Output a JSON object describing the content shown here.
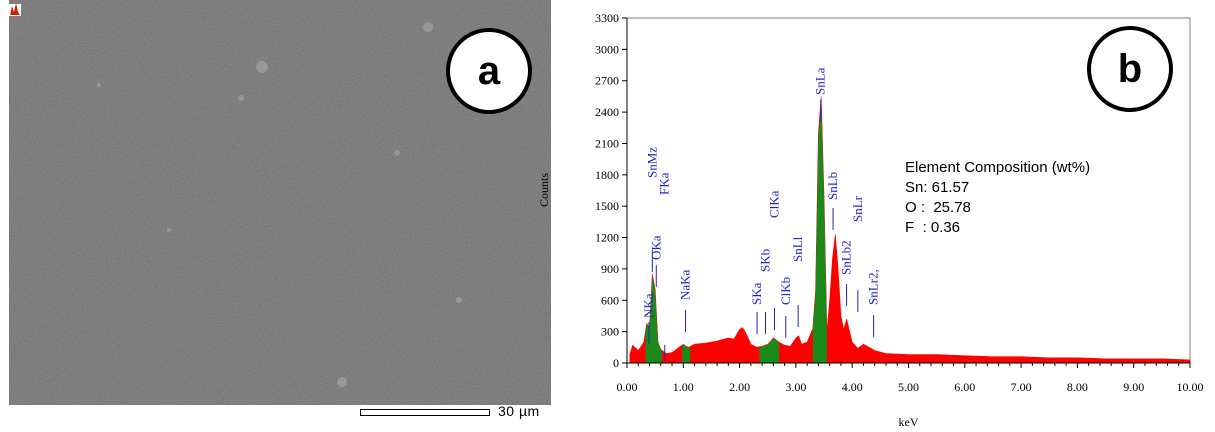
{
  "panel_a": {
    "label": "a",
    "scale_bar_text": "30 µm"
  },
  "panel_b": {
    "label": "b",
    "composition": {
      "title": "Element Composition (wt%)",
      "lines": [
        "Sn: 61.57",
        "O :  25.78",
        "F  : 0.36"
      ]
    }
  },
  "chart_data": {
    "type": "area",
    "title": "",
    "xlabel": "keV",
    "ylabel": "Counts",
    "xlim": [
      0,
      10
    ],
    "ylim": [
      0,
      3300
    ],
    "x_ticks": [
      "0.00",
      "1.00",
      "2.00",
      "3.00",
      "4.00",
      "5.00",
      "6.00",
      "7.00",
      "8.00",
      "9.00",
      "10.00"
    ],
    "y_ticks": [
      "0",
      "300",
      "600",
      "900",
      "1200",
      "1500",
      "1800",
      "2100",
      "2400",
      "2700",
      "3000",
      "3300"
    ],
    "colors": {
      "background_spectrum": "#ff0000",
      "peak_fill": "#1a8a1a",
      "peak_labels": "#2222cc"
    },
    "spectrum": {
      "x": [
        0.05,
        0.1,
        0.2,
        0.3,
        0.35,
        0.4,
        0.45,
        0.5,
        0.52,
        0.55,
        0.6,
        0.65,
        0.7,
        0.8,
        0.9,
        1.0,
        1.05,
        1.1,
        1.2,
        1.4,
        1.6,
        1.8,
        1.9,
        2.0,
        2.05,
        2.1,
        2.2,
        2.3,
        2.4,
        2.5,
        2.6,
        2.7,
        2.8,
        2.9,
        3.0,
        3.05,
        3.1,
        3.2,
        3.3,
        3.35,
        3.4,
        3.45,
        3.5,
        3.55,
        3.6,
        3.65,
        3.7,
        3.75,
        3.8,
        3.85,
        3.9,
        4.0,
        4.1,
        4.2,
        4.3,
        4.4,
        4.6,
        5.0,
        5.5,
        6.0,
        6.5,
        7.0,
        7.5,
        8.0,
        8.5,
        9.0,
        9.5,
        10.0
      ],
      "y": [
        80,
        170,
        120,
        200,
        380,
        330,
        850,
        700,
        500,
        200,
        130,
        110,
        90,
        100,
        140,
        180,
        160,
        150,
        180,
        190,
        210,
        240,
        230,
        320,
        340,
        300,
        180,
        150,
        160,
        180,
        240,
        200,
        170,
        160,
        240,
        260,
        180,
        200,
        330,
        700,
        2200,
        2550,
        1600,
        300,
        600,
        1000,
        1230,
        900,
        450,
        320,
        420,
        200,
        140,
        180,
        150,
        120,
        90,
        80,
        80,
        70,
        60,
        60,
        50,
        50,
        40,
        40,
        40,
        30
      ]
    },
    "green_peaks": [
      {
        "from": 0.33,
        "to": 0.62
      },
      {
        "from": 0.98,
        "to": 1.12
      },
      {
        "from": 2.35,
        "to": 2.7
      },
      {
        "from": 3.3,
        "to": 3.55
      }
    ],
    "peak_labels": [
      {
        "text": "NKa",
        "x": 0.39
      },
      {
        "text": "OKa",
        "x": 0.52
      },
      {
        "text": "SnMz",
        "x": 0.45
      },
      {
        "text": "FKa",
        "x": 0.67
      },
      {
        "text": "NaKa",
        "x": 1.04
      },
      {
        "text": "SKa",
        "x": 2.31
      },
      {
        "text": "SKb",
        "x": 2.46
      },
      {
        "text": "ClKa",
        "x": 2.62
      },
      {
        "text": "ClKb",
        "x": 2.82
      },
      {
        "text": "SnLl",
        "x": 3.04
      },
      {
        "text": "SnLa",
        "x": 3.44
      },
      {
        "text": "SnLb",
        "x": 3.66
      },
      {
        "text": "SnLr",
        "x": 4.1
      },
      {
        "text": "SnLb2",
        "x": 3.9
      },
      {
        "text": "SnLr2,",
        "x": 4.38
      }
    ]
  }
}
